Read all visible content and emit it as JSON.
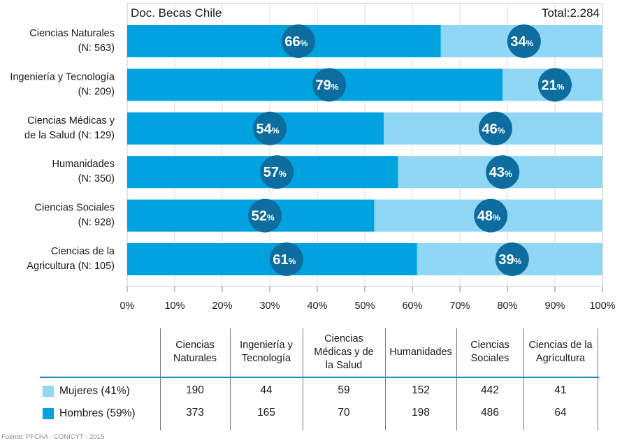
{
  "chart_data": {
    "type": "bar",
    "stacked": true,
    "orientation": "horizontal",
    "title": "Doc. Becas Chile",
    "total_label": "Total:2.284",
    "categories": [
      [
        "Ciencias Naturales",
        "(N: 563)"
      ],
      [
        "Ingeniería y Tecnología",
        "(N: 209)"
      ],
      [
        "Ciencias Médicas y",
        "de la Salud (N: 129)"
      ],
      [
        "Humanidades",
        "(N: 350)"
      ],
      [
        "Ciencias Sociales",
        "(N: 928)"
      ],
      [
        "Ciencias de la",
        "Agricultura (N: 105)"
      ]
    ],
    "series": [
      {
        "name": "Hombres (59%)",
        "color": "#00a3e0",
        "values": [
          66,
          79,
          54,
          57,
          52,
          61
        ]
      },
      {
        "name": "Mujeres (41%)",
        "color": "#8fd7f5",
        "values": [
          34,
          21,
          46,
          43,
          48,
          39
        ]
      }
    ],
    "bubble_color": "#0d6d9e",
    "percent_symbol": "%",
    "xlim": [
      0,
      100
    ],
    "xticks": [
      "0%",
      "10%",
      "20%",
      "30%",
      "40%",
      "50%",
      "60%",
      "70%",
      "80%",
      "90%",
      "100%"
    ],
    "grid": true
  },
  "table": {
    "headers": [
      [
        "Ciencias",
        "Naturales"
      ],
      [
        "Ingeniería y",
        "Tecnología"
      ],
      [
        "Ciencias",
        "Médicas y de",
        "la Salud"
      ],
      [
        "Humanidades"
      ],
      [
        "Ciencias",
        "Sociales"
      ],
      [
        "Ciencias de la",
        "Agrícultura"
      ]
    ],
    "rows": [
      {
        "label": "Mujeres (41%)",
        "color": "#8fd7f5",
        "values": [
          "190",
          "44",
          "59",
          "152",
          "442",
          "41"
        ]
      },
      {
        "label": "Hombres (59%)",
        "color": "#00a3e0",
        "values": [
          "373",
          "165",
          "70",
          "198",
          "486",
          "64"
        ]
      }
    ]
  },
  "source": "Fuente: PFCHA - CONICYT - 2015"
}
